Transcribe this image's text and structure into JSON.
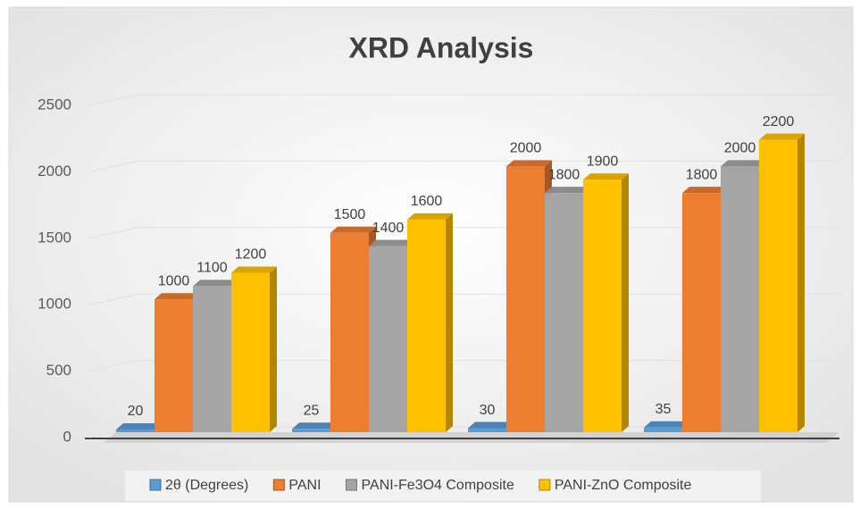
{
  "chart_data": {
    "type": "bar3d",
    "title": "XRD Analysis",
    "categories": [
      null,
      null,
      null,
      null
    ],
    "series": [
      {
        "name": "2θ (Degrees)",
        "color": "#5b9bd5",
        "values": [
          20,
          25,
          30,
          35
        ]
      },
      {
        "name": "PANI",
        "color": "#ed7d31",
        "values": [
          1000,
          1500,
          2000,
          1800
        ]
      },
      {
        "name": "PANI-Fe3O4 Composite",
        "color": "#a5a5a5",
        "values": [
          1100,
          1400,
          1800,
          2000
        ]
      },
      {
        "name": "PANI-ZnO Composite",
        "color": "#ffc000",
        "values": [
          1200,
          1600,
          1900,
          2200
        ]
      }
    ],
    "ylim": [
      0,
      2500
    ],
    "yticks": [
      0,
      500,
      1000,
      1500,
      2000,
      2500
    ],
    "grid": true,
    "legend": "bottom"
  }
}
